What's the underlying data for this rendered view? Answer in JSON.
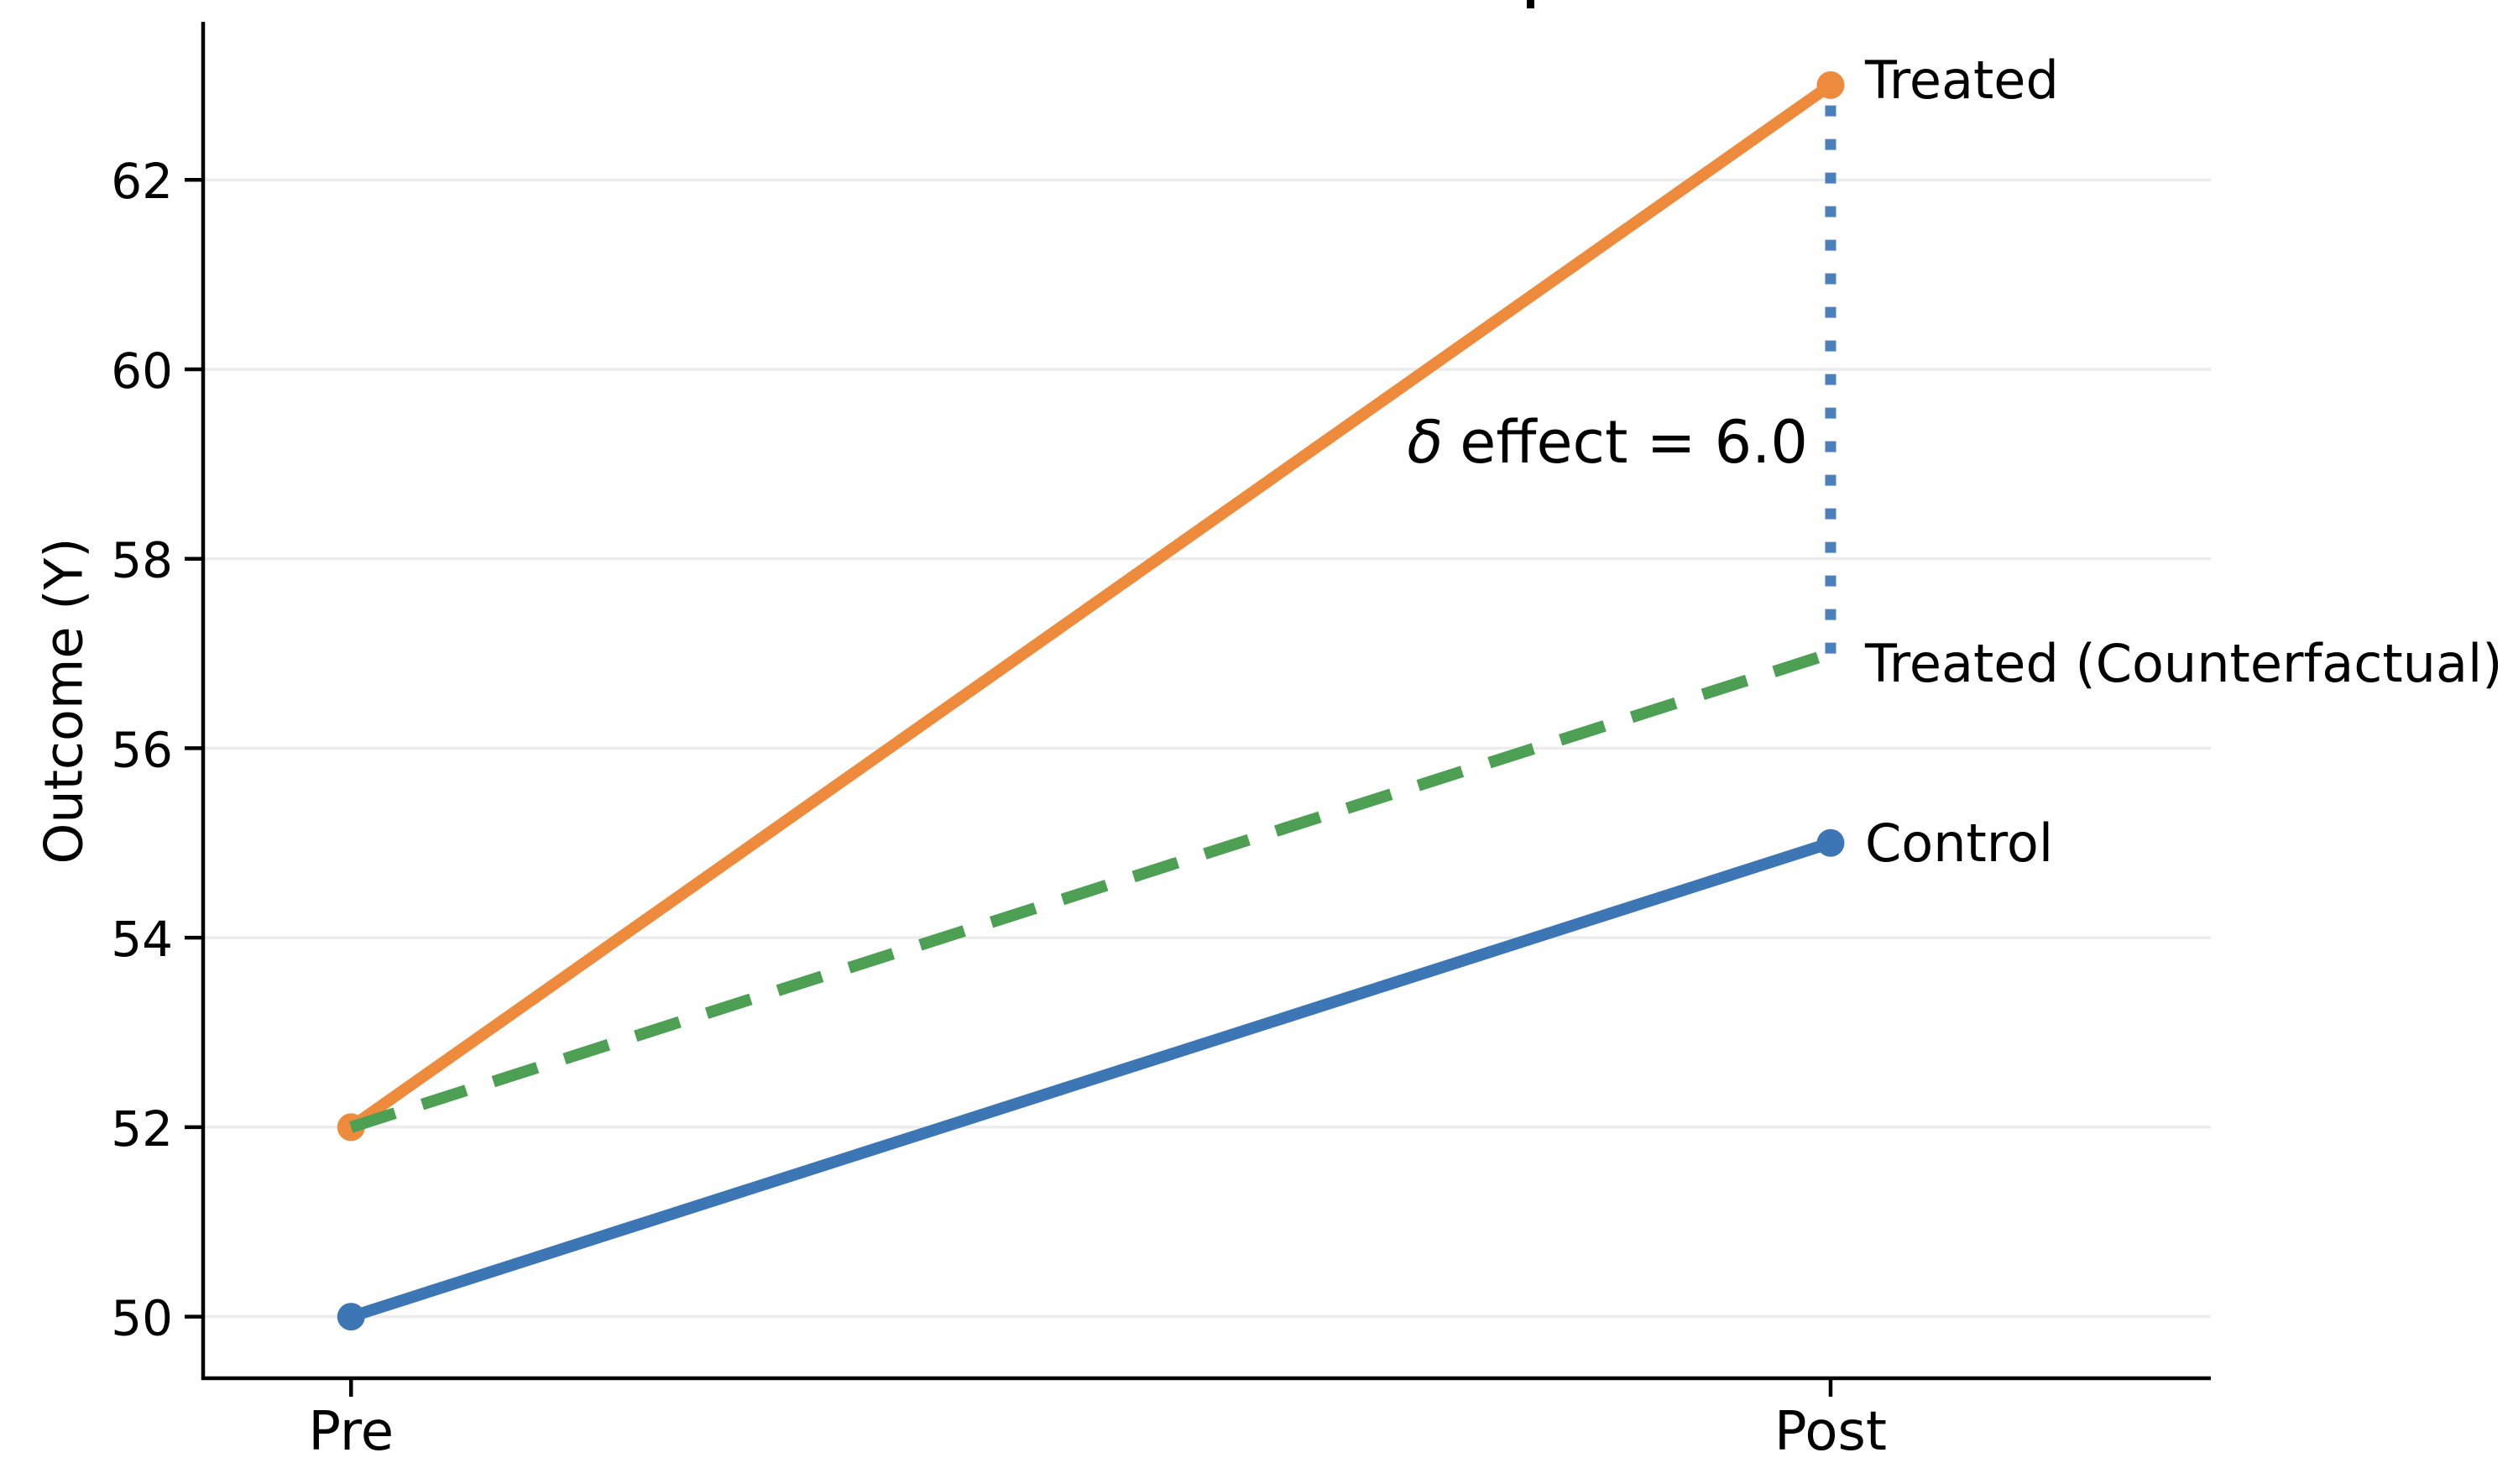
{
  "chart_data": {
    "type": "line",
    "description": "Difference-in-differences plot (title cropped off at top of image)",
    "ylabel": "Outcome (Y)",
    "x_categories": [
      "Pre",
      "Post"
    ],
    "yticks": [
      50,
      52,
      54,
      56,
      58,
      60,
      62
    ],
    "ylim": [
      49.35,
      63.65
    ],
    "grid": "horizontal",
    "legend_position": "end-of-line labels (right side)",
    "series": [
      {
        "name": "Control",
        "end_label": "Control",
        "values": [
          50,
          55
        ],
        "color": "#3d76b4",
        "line_style": "solid",
        "markers": true
      },
      {
        "name": "Treated",
        "end_label": "Treated",
        "values": [
          52,
          63
        ],
        "color": "#ee8a3c",
        "line_style": "solid",
        "markers": true
      },
      {
        "name": "Treated (Counterfactual)",
        "end_label": "Treated (Counterfactual)",
        "values": [
          52,
          57
        ],
        "color": "#4da053",
        "line_style": "dashed",
        "markers": false
      }
    ],
    "effect_marker": {
      "x_category": "Post",
      "from_value": 57,
      "to_value": 63,
      "effect_size": 6.0,
      "line_style": "dotted",
      "color": "#3d76b4",
      "annotation_symbol": "δ",
      "annotation_text": "effect = 6.0"
    }
  },
  "colors": {
    "grid": "#ececec",
    "axis": "#000000",
    "text": "#000000",
    "background": "#ffffff"
  }
}
